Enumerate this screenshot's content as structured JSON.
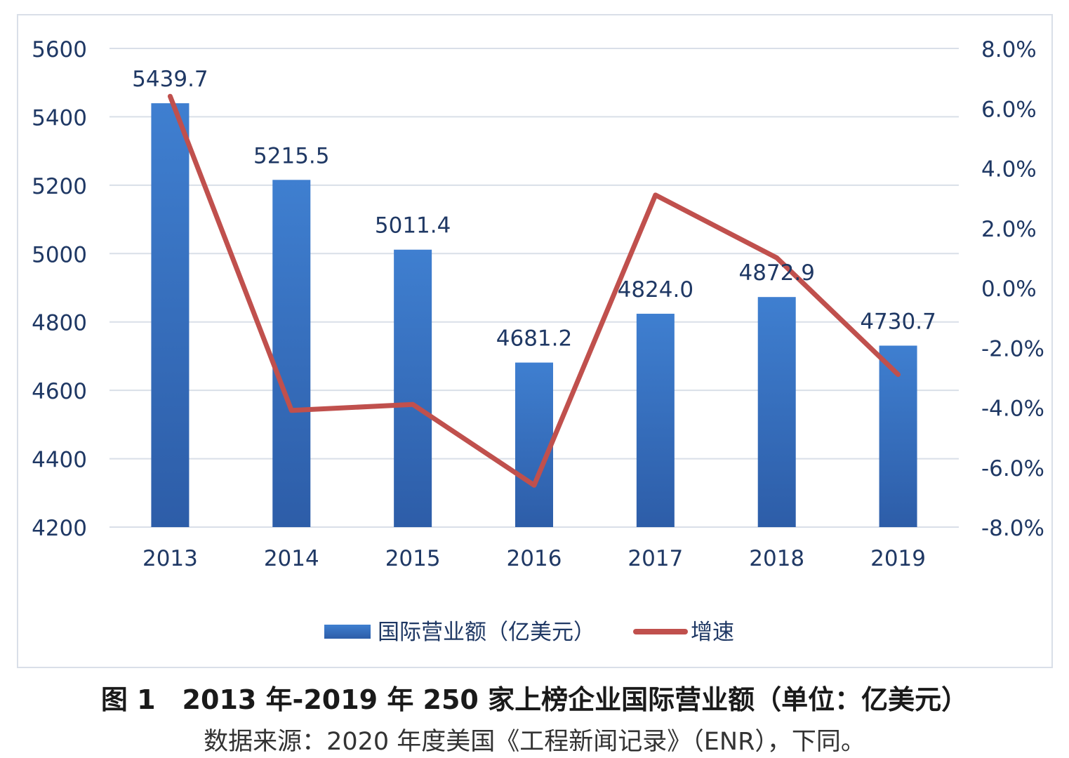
{
  "chart_data": {
    "type": "bar",
    "categories": [
      "2013",
      "2014",
      "2015",
      "2016",
      "2017",
      "2018",
      "2019"
    ],
    "series": [
      {
        "name": "国际营业额（亿美元）",
        "type": "bar",
        "axis": "left",
        "values": [
          5439.7,
          5215.5,
          5011.4,
          4681.2,
          4824.0,
          4872.9,
          4730.7
        ],
        "labels": [
          "5439.7",
          "5215.5",
          "5011.4",
          "4681.2",
          "4824.0",
          "4872.9",
          "4730.7"
        ]
      },
      {
        "name": "增速",
        "type": "line",
        "axis": "right",
        "values": [
          6.4,
          -4.1,
          -3.9,
          -6.6,
          3.1,
          1.0,
          -2.9
        ]
      }
    ],
    "y_left": {
      "min": 4200,
      "max": 5600,
      "step": 200,
      "ticks": [
        "4200",
        "4400",
        "4600",
        "4800",
        "5000",
        "5200",
        "5400",
        "5600"
      ]
    },
    "y_right": {
      "min": -8,
      "max": 8,
      "step": 2,
      "ticks": [
        "-8.0%",
        "-6.0%",
        "-4.0%",
        "-2.0%",
        "0.0%",
        "2.0%",
        "4.0%",
        "6.0%",
        "8.0%"
      ]
    },
    "grid": true,
    "legend": "bottom",
    "colors": {
      "bar_top": "#3f7fd0",
      "bar_bottom": "#2d5da8",
      "line": "#c0504d",
      "grid": "#d9dfe8",
      "axis_text": "#1f3864",
      "label_text": "#1f3864"
    }
  },
  "caption": "图 1　2013 年-2019 年 250 家上榜企业国际营业额（单位：亿美元）",
  "source": "数据来源：2020 年度美国《工程新闻记录》（ENR），下同。"
}
